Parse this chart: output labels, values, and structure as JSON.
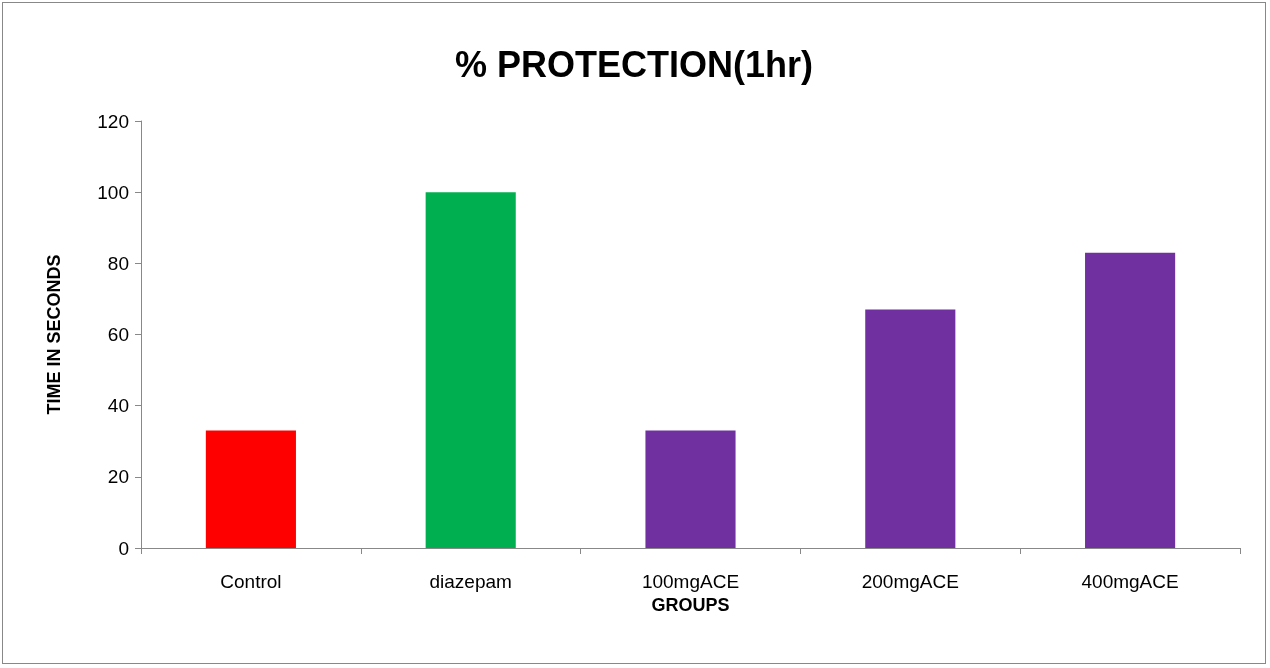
{
  "chart_data": {
    "type": "bar",
    "title": "% PROTECTION(1hr)",
    "xlabel": "GROUPS",
    "ylabel": "TIME IN SECONDS",
    "categories": [
      "Control",
      "diazepam",
      "100mgACE",
      "200mgACE",
      "400mgACE"
    ],
    "values": [
      33,
      100,
      33,
      67,
      83
    ],
    "colors": [
      "#ff0000",
      "#00b050",
      "#7030a0",
      "#7030a0",
      "#7030a0"
    ],
    "ylim": [
      0,
      120
    ],
    "yticks": [
      0,
      20,
      40,
      60,
      80,
      100,
      120
    ]
  }
}
